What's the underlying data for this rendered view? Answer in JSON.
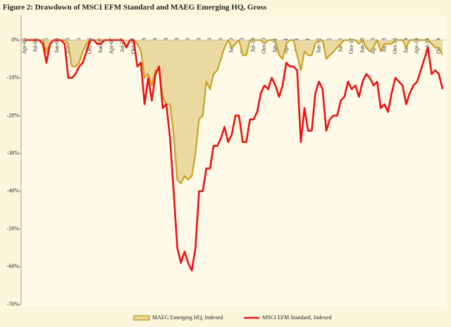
{
  "chart_data": {
    "type": "line",
    "title": "Figure 2: Drawdown  of MSCI EFM Standard  and MAEG Emerging HQ, Gross",
    "categories": [
      "Apr-05",
      null,
      null,
      "Jul-05",
      null,
      null,
      "Oct-05",
      null,
      null,
      "Jan-06",
      null,
      null,
      "Apr-06",
      null,
      null,
      "Jul-06",
      null,
      null,
      "Oct-06",
      null,
      null,
      "Jan-07",
      null,
      null,
      "Apr-07",
      null,
      null,
      "Jul-07",
      null,
      null,
      "Oct-07",
      null,
      null,
      "Jan-08",
      null,
      null,
      "Apr-08",
      null,
      null,
      "Jul-08",
      null,
      null,
      "Oct-08",
      null,
      null,
      "Jan-09",
      null,
      null,
      "Apr-09",
      null,
      null,
      "Jul-09",
      null,
      null,
      "Oct-09",
      null,
      null,
      "Jan-10",
      null,
      null,
      "Apr-10",
      null,
      null,
      "Jul-10",
      null,
      null,
      "Oct-10",
      null,
      null,
      "Jan-11",
      null,
      null,
      "Apr-11",
      null,
      null,
      "Jul-11",
      null,
      null,
      "Oct-11",
      null,
      null,
      "Jan-12",
      null,
      null,
      "Apr-12",
      null,
      null,
      "Jul-12",
      null,
      null,
      "Oct-12",
      null,
      null,
      "Jan-13",
      null,
      null,
      "Apr-13",
      null,
      null,
      "Jul-13",
      null,
      null,
      "Oct-13",
      null,
      null,
      "Jan-14",
      null,
      null,
      "Apr-14",
      null,
      null,
      "Jul-14",
      null,
      null,
      "Oct-14",
      null
    ],
    "series": [
      {
        "name": "MAEG Emerging HQ, Indexed",
        "color": "#c9a227",
        "area_color": "#ead9a0",
        "area": true,
        "values": [
          0,
          0,
          0,
          0,
          0,
          0,
          -3,
          -1,
          0,
          0,
          0,
          0,
          -1,
          -7,
          -7,
          -6,
          -3,
          -1,
          0,
          0,
          0,
          0,
          0,
          0,
          0,
          0,
          0,
          0,
          -2,
          0,
          0,
          -1,
          -3,
          -10,
          -9,
          -12,
          -8,
          -8,
          -15,
          -17,
          -17,
          -25,
          -37,
          -38,
          -36,
          -37,
          -36,
          -30,
          -21,
          -20,
          -11,
          -13,
          -9,
          -8,
          -5,
          -2,
          0,
          -2,
          -1,
          0,
          -4,
          -4,
          0,
          0,
          0,
          0,
          -1,
          0,
          0,
          0,
          -4,
          -5,
          -1,
          0,
          0,
          -4,
          -8,
          -3,
          -4,
          -4,
          -1,
          0,
          0,
          -5,
          -4,
          -3,
          -2,
          -1,
          0,
          0,
          0,
          0,
          -1,
          0,
          -2,
          -3,
          -2,
          0,
          -3,
          -1,
          -1,
          -1,
          0,
          0,
          0,
          -2,
          0,
          0,
          0,
          0,
          0,
          0,
          -1,
          -2,
          -2,
          -4
        ]
      },
      {
        "name": "MSCI EFM Standard, Indexed",
        "color": "#ee1111",
        "area": false,
        "values": [
          0,
          0,
          0,
          0,
          0,
          -1,
          -6,
          -1,
          0,
          0,
          0,
          -1,
          -10,
          -10,
          -9,
          -7,
          -6,
          -3,
          0,
          0,
          -1,
          -1,
          0,
          0,
          0,
          0,
          0,
          0,
          -2,
          0,
          0,
          -7,
          -6,
          -17,
          -10,
          -16,
          -9,
          -7,
          -18,
          -17,
          -26,
          -40,
          -55,
          -59,
          -56,
          -59,
          -61,
          -55,
          -40,
          -40,
          -34,
          -34,
          -28,
          -28,
          -26,
          -23,
          -27,
          -25,
          -20,
          -20,
          -27,
          -27,
          -21,
          -21,
          -19,
          -14,
          -12,
          -13,
          -10,
          -12,
          -15,
          -12,
          -6,
          -7,
          -7,
          -8,
          -27,
          -18,
          -24,
          -24,
          -14,
          -11,
          -13,
          -24,
          -21,
          -20,
          -20,
          -16,
          -15,
          -11,
          -13,
          -12,
          -15,
          -11,
          -9,
          -10,
          -12,
          -11,
          -18,
          -17,
          -19,
          -14,
          -10,
          -11,
          -12,
          -17,
          -14,
          -12,
          -11,
          -8,
          -5,
          -2,
          -9,
          -8,
          -9,
          -13
        ]
      }
    ],
    "ylim": [
      -70,
      0
    ],
    "yticks": [
      {
        "value": 0,
        "label": "0%"
      },
      {
        "value": -10,
        "label": "-10%"
      },
      {
        "value": -20,
        "label": "-20%"
      },
      {
        "value": -30,
        "label": "-30%"
      },
      {
        "value": -40,
        "label": "-40%"
      },
      {
        "value": -50,
        "label": "-50%"
      },
      {
        "value": -60,
        "label": "-60%"
      },
      {
        "value": -70,
        "label": "-70%"
      }
    ],
    "grid": false,
    "legend": "bottom"
  }
}
